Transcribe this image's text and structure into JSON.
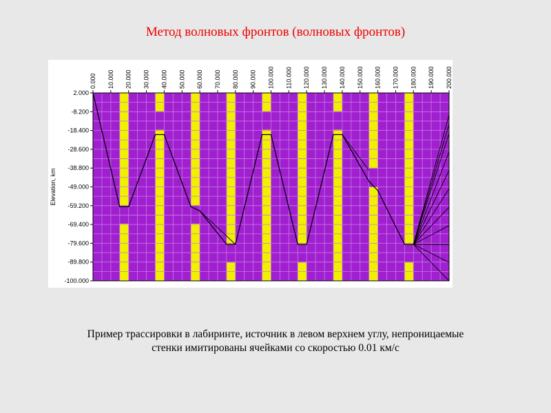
{
  "title": "Метод волновых фронтов (волновых фронтов)",
  "caption": {
    "line1": "Пример трассировки в лабиринте, источник в левом верхнем углу, непроницаемые",
    "line2": "стенки имитированы ячейками со скоростью 0.01 км/с"
  },
  "colors": {
    "background_cells": "#a020d0",
    "wall_cells": "#f0f000",
    "grid": "#c87ae8",
    "rays": "#000000"
  },
  "chart_data": {
    "type": "heatmap",
    "ylabel": "Elevation,  km",
    "xlim": [
      0,
      200
    ],
    "ylim": [
      -100,
      2
    ],
    "x_tick_labels": [
      "0.000",
      "10.000",
      "20.000",
      "30.000",
      "40.000",
      "50.000",
      "60.000",
      "70.000",
      "80.000",
      "90.000",
      "100.000",
      "110.000",
      "120.000",
      "130.000",
      "140.000",
      "150.000",
      "160.000",
      "170.000",
      "180.000",
      "190.000",
      "200.000"
    ],
    "y_tick_labels": [
      "2.000",
      "-8.200",
      "-18.400",
      "-28.600",
      "-38.800",
      "-49.000",
      "-59.200",
      "-69.400",
      "-79.600",
      "-89.800",
      "-100.000"
    ],
    "walls": [
      {
        "x0": 15,
        "x1": 20,
        "segments": [
          [
            -100,
            -69
          ],
          [
            -59,
            2
          ]
        ]
      },
      {
        "x0": 35,
        "x1": 40,
        "segments": [
          [
            -100,
            -18
          ],
          [
            -8,
            2
          ]
        ]
      },
      {
        "x0": 55,
        "x1": 60,
        "segments": [
          [
            -100,
            -69
          ],
          [
            -59,
            2
          ]
        ]
      },
      {
        "x0": 75,
        "x1": 80,
        "segments": [
          [
            -100,
            -90
          ],
          [
            -80,
            2
          ]
        ]
      },
      {
        "x0": 95,
        "x1": 100,
        "segments": [
          [
            -100,
            -18
          ],
          [
            -8,
            2
          ]
        ]
      },
      {
        "x0": 115,
        "x1": 120,
        "segments": [
          [
            -100,
            -90
          ],
          [
            -80,
            2
          ]
        ]
      },
      {
        "x0": 135,
        "x1": 140,
        "segments": [
          [
            -100,
            -18
          ],
          [
            -8,
            2
          ]
        ]
      },
      {
        "x0": 155,
        "x1": 160,
        "segments": [
          [
            -100,
            -49
          ],
          [
            -39,
            2
          ]
        ]
      },
      {
        "x0": 175,
        "x1": 180,
        "segments": [
          [
            -100,
            -90
          ],
          [
            -80,
            2
          ]
        ]
      }
    ],
    "main_ray": [
      [
        0,
        2
      ],
      [
        15,
        -59.8
      ],
      [
        20,
        -59.8
      ],
      [
        35,
        -20.6
      ],
      [
        40,
        -20.6
      ],
      [
        55,
        -59.8
      ],
      [
        60,
        -62
      ],
      [
        75,
        -80.2
      ],
      [
        80,
        -80.2
      ],
      [
        95,
        -20.6
      ],
      [
        100,
        -20.6
      ],
      [
        115,
        -80.2
      ],
      [
        120,
        -80.2
      ],
      [
        135,
        -20.6
      ],
      [
        140,
        -20.6
      ],
      [
        155,
        -46
      ],
      [
        160,
        -51
      ],
      [
        175,
        -80.2
      ],
      [
        180,
        -80.2
      ]
    ],
    "branch_rays": [
      {
        "from": [
          60,
          -62
        ],
        "to": [
          80,
          -80.2
        ]
      },
      {
        "from": [
          140,
          -20.6
        ],
        "to": [
          155,
          -40
        ]
      }
    ],
    "fan_origin": [
      180,
      -80.2
    ],
    "fan_receivers_y": [
      -10,
      -15,
      -20,
      -30,
      -40,
      -50,
      -60,
      -70,
      -80.2,
      -90,
      -100
    ]
  }
}
